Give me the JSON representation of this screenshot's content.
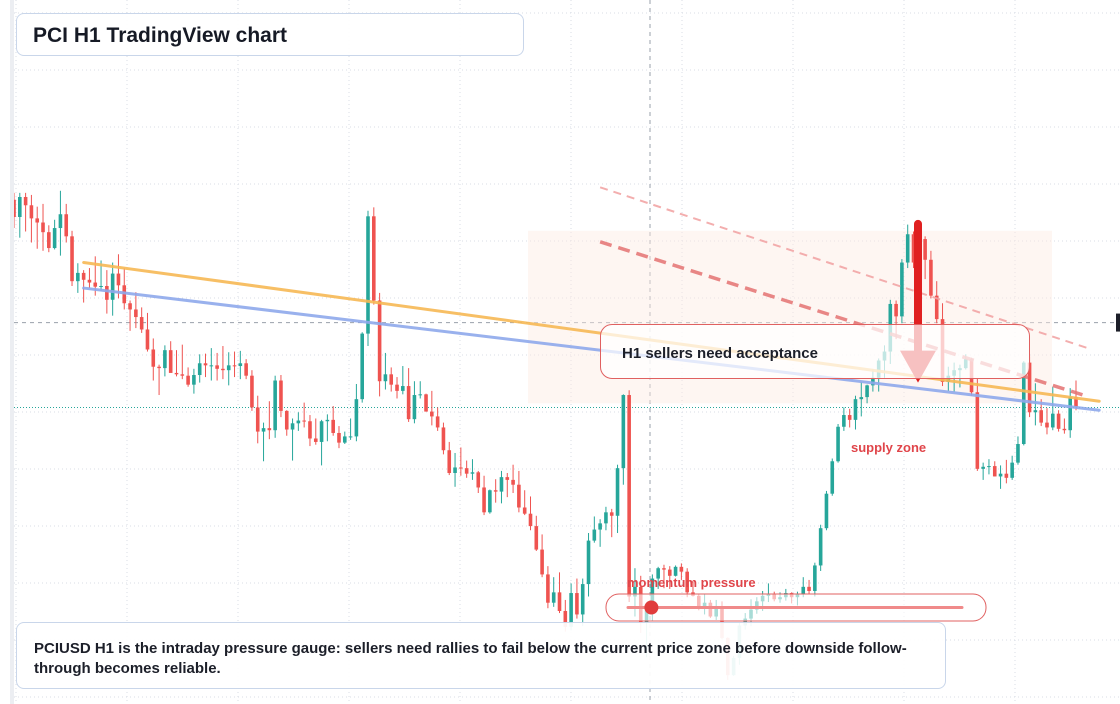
{
  "title": "PCI H1 TradingView chart",
  "callout_text": "H1 sellers need acceptance",
  "supply_zone_label": "supply zone",
  "gauge_label": "momentum pressure",
  "footer_text": "PCIUSD H1 is the intraday pressure gauge: sellers need rallies to fail below the current price zone before downside follow-through becomes reliable.",
  "colors": {
    "bull": "#26a69a",
    "bear": "#ef5350",
    "ma_orange": "#f7b955",
    "ma_blue": "#8fa9ec",
    "arrow": "#e02020",
    "grid": "#d9dde6"
  },
  "chart_data": {
    "type": "candlestick",
    "timeframe": "H1",
    "symbol": "PCIUSD",
    "y_range": [
      0,
      100
    ],
    "grid": true,
    "candles": [
      [
        72.5,
        73.5,
        68.4,
        70.0
      ],
      [
        70.0,
        73.5,
        67.0,
        72.9
      ],
      [
        72.9,
        73.5,
        67.9,
        71.7
      ],
      [
        71.7,
        73.2,
        66.3,
        69.8
      ],
      [
        69.8,
        71.5,
        65.4,
        69.2
      ],
      [
        69.2,
        71.9,
        65.1,
        67.8
      ],
      [
        67.8,
        68.8,
        64.9,
        65.5
      ],
      [
        65.5,
        69.6,
        65.3,
        68.4
      ],
      [
        68.4,
        73.8,
        64.4,
        70.4
      ],
      [
        70.4,
        71.9,
        66.3,
        67.2
      ],
      [
        67.2,
        68.0,
        60.0,
        60.7
      ],
      [
        60.7,
        63.3,
        59.0,
        61.9
      ],
      [
        61.9,
        62.3,
        57.6,
        60.9
      ],
      [
        60.9,
        62.6,
        59.7,
        60.5
      ],
      [
        60.5,
        64.3,
        58.6,
        59.9
      ],
      [
        59.9,
        63.7,
        59.3,
        60.0
      ],
      [
        60.0,
        62.3,
        56.0,
        58.0
      ],
      [
        58.0,
        63.4,
        55.7,
        61.8
      ],
      [
        61.8,
        64.6,
        58.2,
        60.1
      ],
      [
        60.1,
        62.6,
        56.6,
        57.5
      ],
      [
        57.5,
        57.9,
        53.5,
        56.6
      ],
      [
        56.6,
        59.1,
        53.9,
        55.5
      ],
      [
        55.5,
        56.9,
        53.2,
        53.7
      ],
      [
        53.7,
        56.1,
        50.5,
        50.8
      ],
      [
        50.8,
        52.4,
        46.3,
        48.3
      ],
      [
        48.3,
        48.6,
        44.2,
        48.1
      ],
      [
        48.1,
        51.4,
        46.9,
        50.7
      ],
      [
        50.7,
        52.0,
        47.6,
        47.4
      ],
      [
        47.4,
        50.7,
        46.9,
        47.2
      ],
      [
        47.2,
        51.5,
        46.5,
        47.0
      ],
      [
        47.0,
        48.2,
        45.4,
        45.7
      ],
      [
        45.7,
        48.0,
        44.4,
        47.1
      ],
      [
        47.1,
        50.1,
        46.0,
        48.8
      ],
      [
        48.8,
        50.2,
        46.8,
        48.5
      ],
      [
        48.5,
        51.0,
        46.3,
        48.5
      ],
      [
        48.5,
        50.3,
        46.3,
        48.0
      ],
      [
        48.0,
        51.3,
        46.5,
        47.8
      ],
      [
        47.8,
        50.4,
        45.6,
        48.5
      ],
      [
        48.5,
        50.5,
        46.8,
        48.4
      ],
      [
        48.4,
        50.6,
        46.5,
        48.8
      ],
      [
        48.8,
        49.4,
        46.5,
        47.0
      ],
      [
        47.0,
        47.8,
        41.9,
        42.4
      ],
      [
        42.4,
        44.1,
        37.2,
        38.9
      ],
      [
        38.9,
        40.2,
        34.6,
        39.4
      ],
      [
        39.4,
        43.3,
        37.8,
        39.1
      ],
      [
        39.1,
        47.0,
        38.0,
        46.3
      ],
      [
        46.3,
        47.1,
        41.0,
        41.9
      ],
      [
        41.9,
        42.0,
        38.3,
        39.2
      ],
      [
        39.2,
        40.8,
        34.7,
        40.1
      ],
      [
        40.1,
        41.7,
        39.0,
        40.5
      ],
      [
        40.5,
        43.1,
        39.5,
        40.4
      ],
      [
        40.4,
        41.3,
        36.8,
        37.9
      ],
      [
        37.9,
        40.8,
        37.0,
        37.4
      ],
      [
        37.4,
        40.6,
        34.0,
        40.4
      ],
      [
        40.4,
        41.4,
        37.5,
        40.6
      ],
      [
        40.6,
        42.6,
        38.3,
        38.7
      ],
      [
        38.7,
        39.7,
        36.5,
        37.3
      ],
      [
        37.3,
        38.9,
        37.1,
        38.2
      ],
      [
        38.2,
        40.8,
        37.7,
        38.2
      ],
      [
        38.2,
        45.8,
        37.5,
        43.6
      ],
      [
        43.6,
        53.3,
        43.1,
        53.1
      ],
      [
        53.1,
        70.9,
        51.3,
        70.1
      ],
      [
        70.1,
        71.4,
        57.3,
        57.9
      ],
      [
        57.9,
        59.0,
        44.0,
        46.2
      ],
      [
        46.2,
        50.3,
        45.0,
        47.2
      ],
      [
        47.2,
        48.2,
        44.7,
        45.7
      ],
      [
        45.7,
        46.8,
        43.7,
        44.8
      ],
      [
        44.8,
        48.4,
        44.3,
        45.5
      ],
      [
        45.5,
        48.1,
        40.3,
        40.7
      ],
      [
        40.7,
        46.2,
        40.1,
        44.2
      ],
      [
        44.2,
        46.2,
        43.7,
        44.3
      ],
      [
        44.3,
        44.4,
        41.8,
        41.8
      ],
      [
        41.8,
        44.8,
        39.8,
        41.1
      ],
      [
        41.1,
        42.4,
        39.0,
        39.5
      ],
      [
        39.5,
        40.2,
        35.6,
        36.2
      ],
      [
        36.2,
        37.4,
        32.6,
        32.9
      ],
      [
        32.9,
        35.8,
        30.9,
        33.7
      ],
      [
        33.7,
        36.6,
        32.5,
        33.6
      ],
      [
        33.6,
        34.7,
        32.2,
        32.8
      ],
      [
        32.8,
        34.9,
        31.9,
        33.0
      ],
      [
        33.0,
        33.2,
        30.0,
        30.8
      ],
      [
        30.8,
        32.5,
        26.8,
        27.2
      ],
      [
        27.2,
        30.5,
        27.0,
        30.4
      ],
      [
        30.4,
        32.0,
        28.6,
        30.2
      ],
      [
        30.2,
        33.2,
        28.5,
        32.3
      ],
      [
        32.3,
        32.9,
        29.4,
        31.9
      ],
      [
        31.9,
        34.1,
        30.0,
        31.2
      ],
      [
        31.2,
        33.2,
        27.2,
        27.9
      ],
      [
        27.9,
        30.4,
        26.8,
        27.0
      ],
      [
        27.0,
        29.5,
        24.6,
        25.2
      ],
      [
        25.2,
        26.7,
        21.6,
        21.8
      ],
      [
        21.8,
        24.0,
        17.8,
        18.2
      ],
      [
        18.2,
        19.4,
        13.3,
        14.1
      ],
      [
        14.1,
        17.8,
        13.5,
        15.6
      ],
      [
        15.6,
        18.5,
        12.6,
        12.9
      ],
      [
        12.9,
        14.5,
        9.9,
        10.6
      ],
      [
        10.6,
        16.9,
        10.1,
        15.5
      ],
      [
        15.5,
        17.6,
        11.8,
        12.4
      ],
      [
        12.4,
        17.6,
        10.7,
        16.8
      ],
      [
        16.8,
        24.2,
        15.0,
        23.1
      ],
      [
        23.1,
        26.6,
        22.8,
        24.7
      ],
      [
        24.7,
        26.2,
        22.2,
        25.6
      ],
      [
        25.6,
        28.0,
        24.6,
        27.2
      ],
      [
        27.2,
        27.7,
        23.6,
        26.7
      ],
      [
        26.7,
        34.1,
        24.2,
        33.6
      ],
      [
        33.6,
        44.3,
        31.2,
        44.2
      ],
      [
        44.2,
        44.9,
        14.2,
        15.0
      ],
      [
        15.0,
        19.1,
        12.1,
        16.4
      ],
      [
        16.4,
        18.0,
        9.7,
        11.3
      ],
      [
        11.3,
        13.7,
        6.2,
        13.4
      ],
      [
        13.4,
        18.2,
        11.4,
        17.6
      ],
      [
        17.6,
        19.3,
        16.1,
        19.1
      ],
      [
        19.1,
        19.6,
        16.2,
        18.9
      ],
      [
        18.9,
        19.4,
        16.1,
        18.0
      ],
      [
        18.0,
        19.5,
        17.9,
        19.3
      ],
      [
        19.3,
        19.8,
        17.4,
        18.6
      ],
      [
        18.6,
        19.1,
        14.9,
        15.6
      ],
      [
        15.6,
        17.1,
        15.0,
        15.1
      ],
      [
        15.1,
        15.3,
        13.0,
        13.5
      ],
      [
        13.5,
        15.4,
        12.4,
        14.1
      ],
      [
        14.1,
        14.5,
        11.9,
        12.1
      ],
      [
        12.1,
        14.5,
        11.6,
        13.6
      ],
      [
        13.6,
        14.3,
        8.8,
        9.0
      ],
      [
        9.0,
        9.1,
        2.9,
        3.6
      ],
      [
        3.6,
        6.4,
        3.5,
        6.1
      ],
      [
        6.1,
        11.3,
        5.1,
        10.8
      ],
      [
        10.8,
        12.6,
        10.2,
        11.8
      ],
      [
        11.8,
        14.6,
        10.7,
        13.1
      ],
      [
        13.1,
        14.9,
        12.5,
        14.3
      ],
      [
        14.3,
        15.8,
        12.9,
        15.1
      ],
      [
        15.1,
        16.9,
        14.2,
        15.4
      ],
      [
        15.4,
        15.7,
        14.3,
        14.6
      ],
      [
        14.6,
        15.6,
        14.1,
        14.9
      ],
      [
        14.9,
        16.1,
        14.4,
        15.5
      ],
      [
        15.5,
        15.6,
        14.0,
        14.9
      ],
      [
        14.9,
        15.7,
        13.7,
        15.4
      ],
      [
        15.4,
        17.8,
        14.9,
        16.4
      ],
      [
        16.4,
        17.4,
        15.3,
        15.8
      ],
      [
        15.8,
        19.9,
        15.0,
        19.5
      ],
      [
        19.5,
        25.4,
        18.7,
        24.9
      ],
      [
        24.9,
        30.3,
        24.6,
        29.9
      ],
      [
        29.9,
        35.0,
        29.6,
        34.6
      ],
      [
        34.6,
        40.0,
        34.4,
        39.6
      ],
      [
        39.6,
        42.4,
        39.0,
        41.3
      ],
      [
        41.3,
        42.2,
        39.5,
        40.6
      ],
      [
        40.6,
        44.1,
        39.2,
        43.6
      ],
      [
        43.6,
        46.1,
        41.1,
        43.9
      ],
      [
        43.9,
        45.7,
        43.0,
        45.6
      ],
      [
        45.6,
        47.9,
        44.7,
        46.7
      ],
      [
        46.7,
        49.5,
        44.7,
        49.2
      ],
      [
        49.2,
        51.4,
        46.7,
        50.5
      ],
      [
        50.5,
        58.0,
        48.7,
        57.4
      ],
      [
        57.4,
        57.9,
        52.3,
        55.6
      ],
      [
        55.6,
        63.9,
        54.6,
        63.4
      ],
      [
        63.4,
        68.9,
        62.6,
        67.5
      ],
      [
        67.5,
        67.9,
        62.6,
        63.4
      ],
      [
        63.4,
        67.7,
        61.7,
        66.8
      ],
      [
        66.8,
        67.2,
        61.0,
        63.8
      ],
      [
        63.8,
        65.1,
        58.2,
        58.6
      ],
      [
        58.6,
        60.7,
        54.6,
        55.2
      ],
      [
        55.2,
        57.5,
        45.5,
        46.1
      ],
      [
        46.1,
        48.3,
        44.8,
        47.0
      ],
      [
        47.0,
        48.9,
        44.7,
        47.8
      ],
      [
        47.8,
        48.6,
        45.3,
        48.1
      ],
      [
        48.1,
        50.1,
        47.9,
        49.4
      ],
      [
        49.4,
        49.6,
        44.1,
        44.6
      ],
      [
        44.6,
        46.6,
        33.2,
        33.5
      ],
      [
        33.5,
        34.4,
        31.9,
        33.8
      ],
      [
        33.8,
        34.9,
        32.7,
        33.9
      ],
      [
        33.9,
        34.6,
        32.4,
        32.4
      ],
      [
        32.4,
        34.0,
        30.6,
        32.8
      ],
      [
        32.8,
        34.8,
        31.4,
        32.2
      ],
      [
        32.2,
        35.4,
        31.9,
        34.4
      ],
      [
        34.4,
        38.2,
        34.1,
        37.1
      ],
      [
        37.1,
        49.1,
        36.9,
        48.9
      ],
      [
        48.9,
        49.8,
        41.0,
        41.7
      ],
      [
        41.7,
        45.9,
        39.8,
        42.0
      ],
      [
        42.0,
        43.6,
        39.7,
        40.2
      ],
      [
        40.2,
        42.3,
        38.5,
        39.5
      ],
      [
        39.5,
        45.4,
        39.1,
        41.5
      ],
      [
        41.5,
        42.0,
        38.9,
        39.3
      ],
      [
        39.3,
        40.8,
        38.6,
        39.1
      ],
      [
        39.1,
        45.2,
        38.0,
        43.9
      ],
      [
        43.9,
        46.3,
        42.0,
        42.5
      ]
    ],
    "moving_averages": [
      {
        "color": "#f7b955",
        "from": [
          12,
          63.4
        ],
        "to": [
          187,
          43.3
        ]
      },
      {
        "color": "#8fa9ec",
        "from": [
          12,
          59.7
        ],
        "to": [
          187,
          42.0
        ]
      }
    ],
    "dashed_trendlines": [
      {
        "from": [
          101,
          66.4
        ],
        "to": [
          185,
          44.0
        ]
      },
      {
        "from": [
          101,
          74.3
        ],
        "to": [
          185,
          51.0
        ]
      }
    ],
    "annotations": {
      "supply_zone_y": [
        43,
        68
      ],
      "arrow_y": [
        69,
        46
      ],
      "crosshair_y": 54.7,
      "last_price_y": 42.4,
      "gauge_level": 0.07
    }
  }
}
